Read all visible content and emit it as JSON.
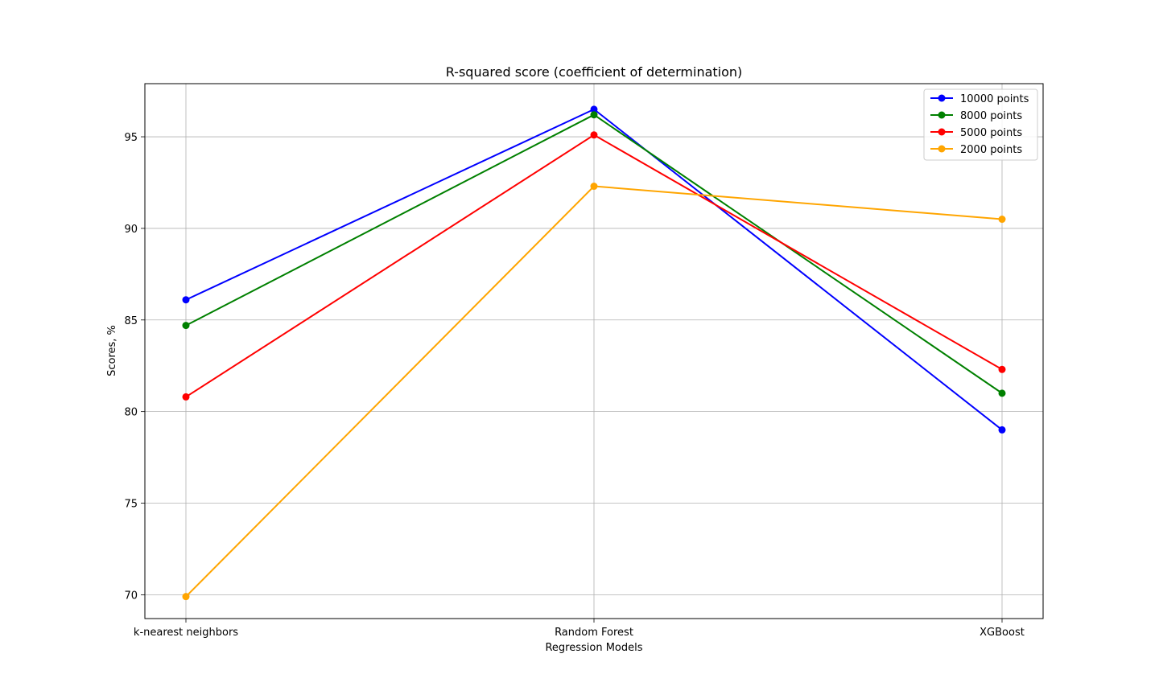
{
  "chart_data": {
    "type": "line",
    "title": "R-squared score (coefficient of determination)",
    "xlabel": "Regression Models",
    "ylabel": "Scores, %",
    "categories": [
      "k-nearest neighbors",
      "Random Forest",
      "XGBoost"
    ],
    "ylim": [
      68.7,
      97.9
    ],
    "yticks": [
      70,
      75,
      80,
      85,
      90,
      95
    ],
    "grid": true,
    "legend_position": "top-right",
    "marker": "circle",
    "series": [
      {
        "name": "10000 points",
        "color": "#0000ff",
        "values": [
          86.1,
          96.5,
          79.0
        ]
      },
      {
        "name": "8000 points",
        "color": "#008000",
        "values": [
          84.7,
          96.2,
          81.0
        ]
      },
      {
        "name": "5000 points",
        "color": "#ff0000",
        "values": [
          80.8,
          95.1,
          82.3
        ]
      },
      {
        "name": "2000 points",
        "color": "#ffa500",
        "values": [
          69.9,
          92.3,
          90.5
        ]
      }
    ]
  }
}
